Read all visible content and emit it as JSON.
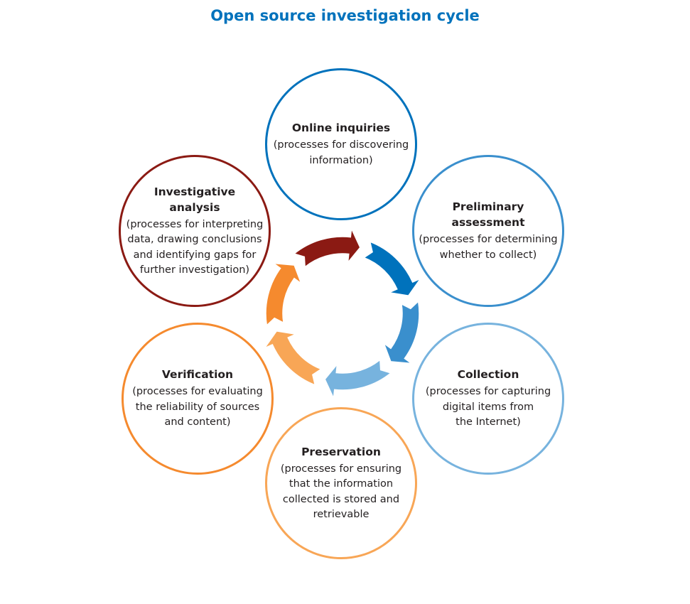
{
  "title": "Open source investigation cycle",
  "nodes": {
    "online": {
      "heading": "Online inquiries",
      "desc": "(processes for discovering\ninformation)",
      "color": "#0072bc"
    },
    "prelim": {
      "heading": "Preliminary\nassessment",
      "desc": "(processes for determining\nwhether to collect)",
      "color": "#3a8fcd"
    },
    "collect": {
      "heading": "Collection",
      "desc": "(processes for capturing\ndigital items from\nthe Internet)",
      "color": "#77b3de"
    },
    "preserve": {
      "heading": "Preservation",
      "desc": "(processes for ensuring\nthat the information\ncollected is stored and\nretrievable",
      "color": "#f8a656"
    },
    "verify": {
      "heading": "Verification",
      "desc": "(processes for evaluating\nthe reliability of sources\nand content)",
      "color": "#f58a2e"
    },
    "analysis": {
      "heading": "Investigative\nanalysis",
      "desc": "(processes for interpreting\ndata, drawing conclusions\nand identifying gaps for\nfurther investigation)",
      "color": "#8b1a13"
    }
  },
  "cycle_arrows": [
    {
      "name": "arrow-online",
      "color": "#0072bc"
    },
    {
      "name": "arrow-prelim",
      "color": "#3a8fcd"
    },
    {
      "name": "arrow-collect",
      "color": "#77b3de"
    },
    {
      "name": "arrow-preserve",
      "color": "#f8a656"
    },
    {
      "name": "arrow-verify",
      "color": "#f58a2e"
    },
    {
      "name": "arrow-analysis",
      "color": "#8b1a13"
    }
  ]
}
